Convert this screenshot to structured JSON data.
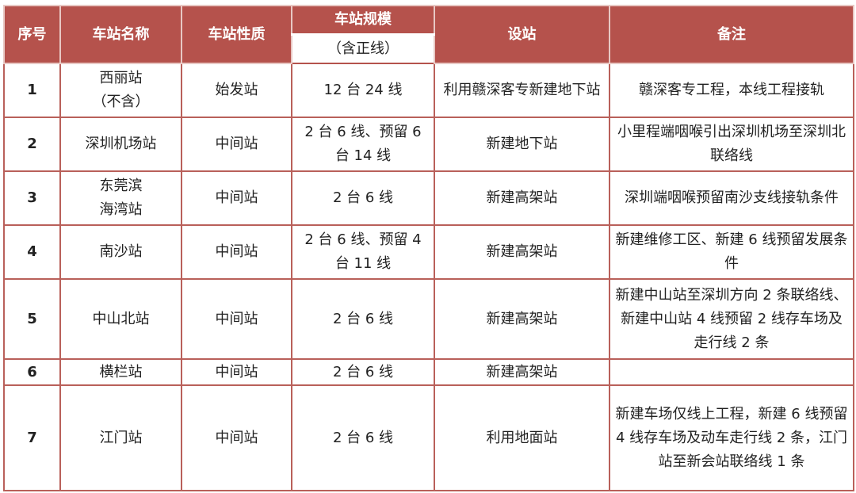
{
  "header": {
    "no": "序号",
    "name": "车站名称",
    "type": "车站性质",
    "scale": "车站规模",
    "scale_sub": "（含正线）",
    "build": "设站",
    "note": "备注"
  },
  "rows": [
    {
      "no": "1",
      "name": "西丽站\n（不含）",
      "type": "始发站",
      "scale": "12 台 24 线",
      "build": "利用赣深客专新建地下站",
      "note": "赣深客专工程，本线工程接轨"
    },
    {
      "no": "2",
      "name": "深圳机场站",
      "type": "中间站",
      "scale": "2 台 6 线、预留 6 台 14 线",
      "build": "新建地下站",
      "note": "小里程端咽喉引出深圳机场至深圳北联络线"
    },
    {
      "no": "3",
      "name": "东莞滨\n海湾站",
      "type": "中间站",
      "scale": "2 台 6 线",
      "build": "新建高架站",
      "note": "深圳端咽喉预留南沙支线接轨条件"
    },
    {
      "no": "4",
      "name": "南沙站",
      "type": "中间站",
      "scale": "2 台 6 线、预留 4 台 11 线",
      "build": "新建高架站",
      "note": "新建维修工区、新建 6 线预留发展条件"
    },
    {
      "no": "5",
      "name": "中山北站",
      "type": "中间站",
      "scale": "2 台 6 线",
      "build": "新建高架站",
      "note": "新建中山站至深圳方向 2 条联络线、新建中山站 4 线预留 2 线存车场及走行线 2 条"
    },
    {
      "no": "6",
      "name": "横栏站",
      "type": "中间站",
      "scale": "2 台 6 线",
      "build": "新建高架站",
      "note": ""
    },
    {
      "no": "7",
      "name": "江门站",
      "type": "中间站",
      "scale": "2 台 6 线",
      "build": "利用地面站",
      "note": "新建车场仅线上工程，新建 6 线预留 4 线存车场及动车走行线 2 条，江门站至新会站联络线 1 条"
    }
  ],
  "colors": {
    "header_bg": "#b5524c",
    "border": "#b9605a"
  }
}
